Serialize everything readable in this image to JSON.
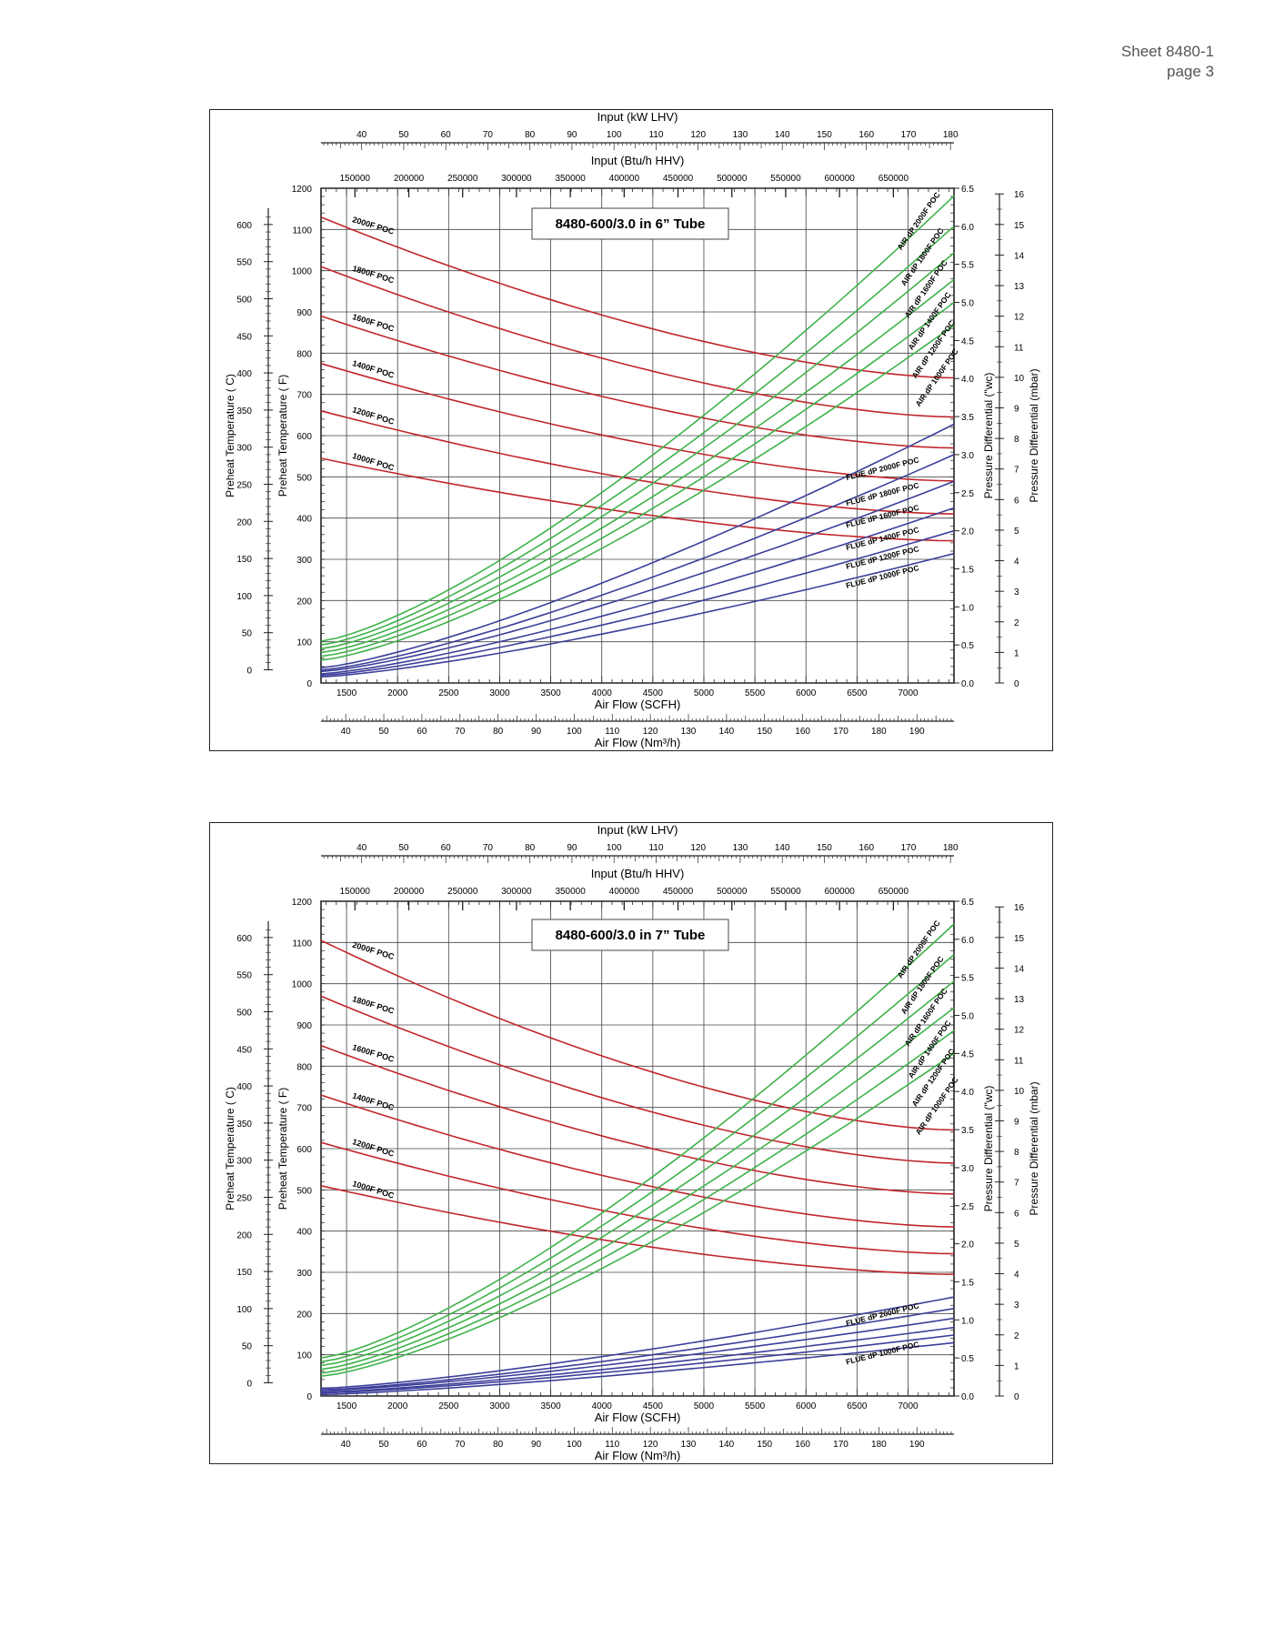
{
  "header": {
    "sheet": "Sheet 8480-1",
    "page": "page 3"
  },
  "colors": {
    "temperature": "#c0262c",
    "air_dp": "#3fb24a",
    "flue_dp": "#3c3f9a",
    "grid": "#333333"
  },
  "chart_data": [
    {
      "type": "line",
      "title": "8480-600/3.0 in 6” Tube",
      "xlabel": "Air Flow (SCFH)",
      "xlim": [
        1250,
        7450
      ],
      "x_ticks": [
        1500,
        2000,
        2500,
        3000,
        3500,
        4000,
        4500,
        5000,
        5500,
        6000,
        6500,
        7000
      ],
      "ylabel_left_f": "Preheat Temperature ( F)",
      "ylim_f": [
        0,
        1200
      ],
      "y_ticks_f": [
        0,
        100,
        200,
        300,
        400,
        500,
        600,
        700,
        800,
        900,
        1000,
        1100,
        1200
      ],
      "ylabel_left_c": "Preheat Temperature ( C)",
      "y_ticks_c": [
        0,
        50,
        100,
        150,
        200,
        250,
        300,
        350,
        400,
        450,
        500,
        550,
        600
      ],
      "ylabel_right_wc": "Pressure Differential (\"wc)",
      "ylim_wc": [
        0,
        6.5
      ],
      "y_ticks_wc": [
        "0.0",
        "0.5",
        "1.0",
        "1.5",
        "2.0",
        "2.5",
        "3.0",
        "3.5",
        "4.0",
        "4.5",
        "5.0",
        "5.5",
        "6.0",
        "6.5"
      ],
      "ylabel_right_mbar": "Pressure Differential (mbar)",
      "y_ticks_mbar": [
        0,
        1,
        2,
        3,
        4,
        5,
        6,
        7,
        8,
        9,
        10,
        11,
        12,
        13,
        14,
        15,
        16
      ],
      "top_axis_1_label": "Input (kW LHV)",
      "top_axis_1_ticks": [
        40,
        50,
        60,
        70,
        80,
        90,
        100,
        110,
        120,
        130,
        140,
        150,
        160,
        170,
        180
      ],
      "top_axis_2_label": "Input (Btu/h HHV)",
      "top_axis_2_ticks": [
        150000,
        200000,
        250000,
        300000,
        350000,
        400000,
        450000,
        500000,
        550000,
        600000,
        650000
      ],
      "bottom_axis_2_label": "Air Flow (Nm³/h)",
      "bottom_axis_2_ticks": [
        40,
        50,
        60,
        70,
        80,
        90,
        100,
        110,
        120,
        130,
        140,
        150,
        160,
        170,
        180,
        190
      ],
      "series": [
        {
          "name": "2000F POC",
          "group": "temp",
          "x": [
            1250,
            7450
          ],
          "y": [
            1130,
            740
          ]
        },
        {
          "name": "1800F POC",
          "group": "temp",
          "x": [
            1250,
            7450
          ],
          "y": [
            1010,
            645
          ]
        },
        {
          "name": "1600F POC",
          "group": "temp",
          "x": [
            1250,
            7450
          ],
          "y": [
            890,
            570
          ]
        },
        {
          "name": "1400F POC",
          "group": "temp",
          "x": [
            1250,
            7450
          ],
          "y": [
            775,
            490
          ]
        },
        {
          "name": "1200F POC",
          "group": "temp",
          "x": [
            1250,
            7450
          ],
          "y": [
            660,
            410
          ]
        },
        {
          "name": "1000F POC",
          "group": "temp",
          "x": [
            1250,
            7450
          ],
          "y": [
            545,
            345
          ]
        },
        {
          "name": "AIR dP 2000F POC",
          "group": "air",
          "x": [
            1250,
            7450
          ],
          "y": [
            0.55,
            6.4
          ]
        },
        {
          "name": "AIR dP 1800F POC",
          "group": "air",
          "x": [
            1250,
            7450
          ],
          "y": [
            0.5,
            6.0
          ]
        },
        {
          "name": "AIR dP 1600F POC",
          "group": "air",
          "x": [
            1250,
            7450
          ],
          "y": [
            0.45,
            5.65
          ]
        },
        {
          "name": "AIR dP 1400F POC",
          "group": "air",
          "x": [
            1250,
            7450
          ],
          "y": [
            0.4,
            5.3
          ]
        },
        {
          "name": "AIR dP 1200F POC",
          "group": "air",
          "x": [
            1250,
            7450
          ],
          "y": [
            0.35,
            5.0
          ]
        },
        {
          "name": "AIR dP 1000F POC",
          "group": "air",
          "x": [
            1250,
            7450
          ],
          "y": [
            0.3,
            4.7
          ]
        },
        {
          "name": "FLUE dP 2000F POC",
          "group": "flue",
          "x": [
            1250,
            7450
          ],
          "y": [
            0.2,
            3.4
          ]
        },
        {
          "name": "FLUE dP 1800F POC",
          "group": "flue",
          "x": [
            1250,
            7450
          ],
          "y": [
            0.17,
            3.0
          ]
        },
        {
          "name": "FLUE dP 1600F POC",
          "group": "flue",
          "x": [
            1250,
            7450
          ],
          "y": [
            0.15,
            2.65
          ]
        },
        {
          "name": "FLUE dP 1400F POC",
          "group": "flue",
          "x": [
            1250,
            7450
          ],
          "y": [
            0.12,
            2.3
          ]
        },
        {
          "name": "FLUE dP 1200F POC",
          "group": "flue",
          "x": [
            1250,
            7450
          ],
          "y": [
            0.1,
            2.0
          ]
        },
        {
          "name": "FLUE dP 1000F POC",
          "group": "flue",
          "x": [
            1250,
            7450
          ],
          "y": [
            0.08,
            1.7
          ]
        }
      ]
    },
    {
      "type": "line",
      "title": "8480-600/3.0 in 7” Tube",
      "xlabel": "Air Flow (SCFH)",
      "xlim": [
        1250,
        7450
      ],
      "x_ticks": [
        1500,
        2000,
        2500,
        3000,
        3500,
        4000,
        4500,
        5000,
        5500,
        6000,
        6500,
        7000
      ],
      "ylabel_left_f": "Preheat Temperature ( F)",
      "ylim_f": [
        0,
        1200
      ],
      "y_ticks_f": [
        0,
        100,
        200,
        300,
        400,
        500,
        600,
        700,
        800,
        900,
        1000,
        1100,
        1200
      ],
      "ylabel_left_c": "Preheat Temperature ( C)",
      "y_ticks_c": [
        0,
        50,
        100,
        150,
        200,
        250,
        300,
        350,
        400,
        450,
        500,
        550,
        600
      ],
      "ylabel_right_wc": "Pressure Differential (\"wc)",
      "ylim_wc": [
        0,
        6.5
      ],
      "y_ticks_wc": [
        "0.0",
        "0.5",
        "1.0",
        "1.5",
        "2.0",
        "2.5",
        "3.0",
        "3.5",
        "4.0",
        "4.5",
        "5.0",
        "5.5",
        "6.0",
        "6.5"
      ],
      "ylabel_right_mbar": "Pressure Differential (mbar)",
      "y_ticks_mbar": [
        0,
        1,
        2,
        3,
        4,
        5,
        6,
        7,
        8,
        9,
        10,
        11,
        12,
        13,
        14,
        15,
        16
      ],
      "top_axis_1_label": "Input (kW LHV)",
      "top_axis_1_ticks": [
        40,
        50,
        60,
        70,
        80,
        90,
        100,
        110,
        120,
        130,
        140,
        150,
        160,
        170,
        180
      ],
      "top_axis_2_label": "Input (Btu/h HHV)",
      "top_axis_2_ticks": [
        150000,
        200000,
        250000,
        300000,
        350000,
        400000,
        450000,
        500000,
        550000,
        600000,
        650000
      ],
      "bottom_axis_2_label": "Air Flow (Nm³/h)",
      "bottom_axis_2_ticks": [
        40,
        50,
        60,
        70,
        80,
        90,
        100,
        110,
        120,
        130,
        140,
        150,
        160,
        170,
        180,
        190
      ],
      "series": [
        {
          "name": "2000F POC",
          "group": "temp",
          "x": [
            1250,
            7450
          ],
          "y": [
            1105,
            645
          ]
        },
        {
          "name": "1800F POC",
          "group": "temp",
          "x": [
            1250,
            7450
          ],
          "y": [
            970,
            565
          ]
        },
        {
          "name": "1600F POC",
          "group": "temp",
          "x": [
            1250,
            7450
          ],
          "y": [
            850,
            490
          ]
        },
        {
          "name": "1400F POC",
          "group": "temp",
          "x": [
            1250,
            7450
          ],
          "y": [
            730,
            410
          ]
        },
        {
          "name": "1200F POC",
          "group": "temp",
          "x": [
            1250,
            7450
          ],
          "y": [
            615,
            345
          ]
        },
        {
          "name": "1000F POC",
          "group": "temp",
          "x": [
            1250,
            7450
          ],
          "y": [
            510,
            295
          ]
        },
        {
          "name": "AIR dP 2000F POC",
          "group": "air",
          "x": [
            1250,
            7450
          ],
          "y": [
            0.5,
            6.2
          ]
        },
        {
          "name": "AIR dP 1800F POC",
          "group": "air",
          "x": [
            1250,
            7450
          ],
          "y": [
            0.45,
            5.8
          ]
        },
        {
          "name": "AIR dP 1600F POC",
          "group": "air",
          "x": [
            1250,
            7450
          ],
          "y": [
            0.4,
            5.45
          ]
        },
        {
          "name": "AIR dP 1400F POC",
          "group": "air",
          "x": [
            1250,
            7450
          ],
          "y": [
            0.35,
            5.1
          ]
        },
        {
          "name": "AIR dP 1200F POC",
          "group": "air",
          "x": [
            1250,
            7450
          ],
          "y": [
            0.3,
            4.8
          ]
        },
        {
          "name": "AIR dP 1000F POC",
          "group": "air",
          "x": [
            1250,
            7450
          ],
          "y": [
            0.26,
            4.5
          ]
        },
        {
          "name": "FLUE dP 2000F POC",
          "group": "flue",
          "x": [
            1250,
            7450
          ],
          "y": [
            0.1,
            1.3
          ]
        },
        {
          "name": "FLUE dP 1800F POC",
          "group": "flue",
          "x": [
            1250,
            7450
          ],
          "y": [
            0.08,
            1.15
          ]
        },
        {
          "name": "FLUE dP 1600F POC",
          "group": "flue",
          "x": [
            1250,
            7450
          ],
          "y": [
            0.07,
            1.02
          ]
        },
        {
          "name": "FLUE dP 1400F POC",
          "group": "flue",
          "x": [
            1250,
            7450
          ],
          "y": [
            0.05,
            0.9
          ]
        },
        {
          "name": "FLUE dP 1200F POC",
          "group": "flue",
          "x": [
            1250,
            7450
          ],
          "y": [
            0.04,
            0.8
          ]
        },
        {
          "name": "FLUE dP 1000F POC",
          "group": "flue",
          "x": [
            1250,
            7450
          ],
          "y": [
            0.02,
            0.7
          ]
        }
      ],
      "flue_labels_shown": [
        "FLUE dP 2000F POC",
        "FLUE dP 1000F POC"
      ]
    }
  ]
}
